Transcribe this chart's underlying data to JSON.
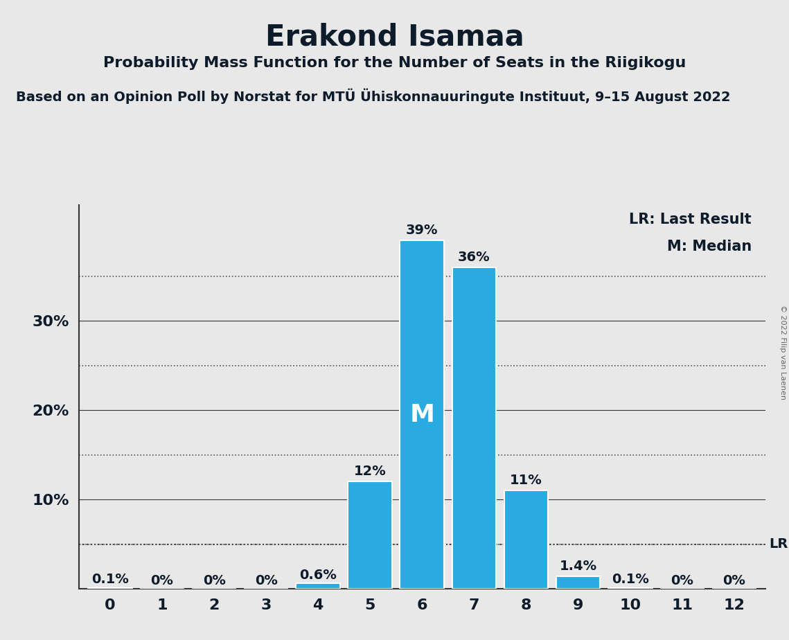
{
  "title": "Erakond Isamaa",
  "subtitle1": "Probability Mass Function for the Number of Seats in the Riigikogu",
  "subtitle2": "Based on an Opinion Poll by Norstat for MTÜ Ühiskonnauuringute Instituut, 9–15 August 2022",
  "copyright": "© 2022 Filip van Laenen",
  "categories": [
    0,
    1,
    2,
    3,
    4,
    5,
    6,
    7,
    8,
    9,
    10,
    11,
    12
  ],
  "values": [
    0.001,
    0.0,
    0.0,
    0.0,
    0.006,
    0.12,
    0.39,
    0.36,
    0.11,
    0.014,
    0.001,
    0.0,
    0.0
  ],
  "labels": [
    "0.1%",
    "0%",
    "0%",
    "0%",
    "0.6%",
    "12%",
    "39%",
    "36%",
    "11%",
    "1.4%",
    "0.1%",
    "0%",
    "0%"
  ],
  "bar_color": "#29ABE2",
  "bg_color": "#E8E8E8",
  "median_bar": 6,
  "lr_value": 0.05,
  "lr_label": "LR",
  "legend_lr": "LR: Last Result",
  "legend_m": "M: Median",
  "yticks": [
    0.1,
    0.2,
    0.3
  ],
  "ytick_labels": [
    "10%",
    "20%",
    "30%"
  ],
  "solid_gridlines": [
    0.1,
    0.2,
    0.3
  ],
  "dotted_gridlines": [
    0.05,
    0.15,
    0.25,
    0.35
  ],
  "ylim": [
    0,
    0.43
  ],
  "title_fontsize": 30,
  "subtitle1_fontsize": 16,
  "subtitle2_fontsize": 14,
  "tick_fontsize": 16,
  "label_fontsize": 14,
  "legend_fontsize": 15,
  "lr_fontsize": 14
}
